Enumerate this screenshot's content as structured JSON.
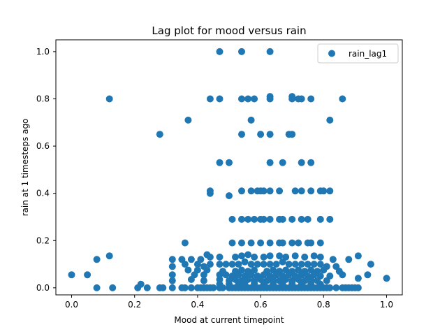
{
  "chart_data": {
    "type": "scatter",
    "title": "Lag plot for mood versus rain",
    "xlabel": "Mood at current timepoint",
    "ylabel": "rain at 1 timesteps ago",
    "xlim": [
      -0.05,
      1.05
    ],
    "ylim": [
      -0.03,
      1.05
    ],
    "xticks": [
      0.0,
      0.2,
      0.4,
      0.6,
      0.8,
      1.0
    ],
    "xtick_labels": [
      "0.0",
      "0.2",
      "0.4",
      "0.6",
      "0.8",
      "1.0"
    ],
    "yticks": [
      0.0,
      0.2,
      0.4,
      0.6,
      0.8,
      1.0
    ],
    "ytick_labels": [
      "0.0",
      "0.2",
      "0.4",
      "0.6",
      "0.8",
      "1.0"
    ],
    "grid": false,
    "legend": {
      "position": "top-right",
      "entries": [
        "rain_lag1"
      ]
    },
    "series": [
      {
        "name": "rain_lag1",
        "color": "#1f77b4",
        "points": [
          [
            0.47,
            1.0
          ],
          [
            0.54,
            1.0
          ],
          [
            0.63,
            1.0
          ],
          [
            0.12,
            0.8
          ],
          [
            0.44,
            0.8
          ],
          [
            0.47,
            0.8
          ],
          [
            0.54,
            0.8
          ],
          [
            0.56,
            0.8
          ],
          [
            0.58,
            0.8
          ],
          [
            0.63,
            0.81
          ],
          [
            0.63,
            0.8
          ],
          [
            0.7,
            0.81
          ],
          [
            0.7,
            0.8
          ],
          [
            0.72,
            0.8
          ],
          [
            0.73,
            0.8
          ],
          [
            0.76,
            0.8
          ],
          [
            0.86,
            0.8
          ],
          [
            0.37,
            0.71
          ],
          [
            0.57,
            0.71
          ],
          [
            0.82,
            0.71
          ],
          [
            0.28,
            0.65
          ],
          [
            0.54,
            0.65
          ],
          [
            0.6,
            0.65
          ],
          [
            0.63,
            0.65
          ],
          [
            0.69,
            0.65
          ],
          [
            0.7,
            0.65
          ],
          [
            0.47,
            0.53
          ],
          [
            0.5,
            0.53
          ],
          [
            0.63,
            0.53
          ],
          [
            0.67,
            0.53
          ],
          [
            0.73,
            0.53
          ],
          [
            0.76,
            0.53
          ],
          [
            0.44,
            0.41
          ],
          [
            0.44,
            0.4
          ],
          [
            0.5,
            0.39
          ],
          [
            0.54,
            0.41
          ],
          [
            0.57,
            0.41
          ],
          [
            0.59,
            0.41
          ],
          [
            0.6,
            0.41
          ],
          [
            0.61,
            0.41
          ],
          [
            0.63,
            0.41
          ],
          [
            0.66,
            0.41
          ],
          [
            0.71,
            0.41
          ],
          [
            0.73,
            0.41
          ],
          [
            0.76,
            0.41
          ],
          [
            0.79,
            0.41
          ],
          [
            0.8,
            0.41
          ],
          [
            0.82,
            0.41
          ],
          [
            0.51,
            0.29
          ],
          [
            0.54,
            0.29
          ],
          [
            0.56,
            0.29
          ],
          [
            0.58,
            0.29
          ],
          [
            0.6,
            0.29
          ],
          [
            0.61,
            0.29
          ],
          [
            0.63,
            0.29
          ],
          [
            0.66,
            0.29
          ],
          [
            0.67,
            0.29
          ],
          [
            0.7,
            0.29
          ],
          [
            0.73,
            0.29
          ],
          [
            0.75,
            0.29
          ],
          [
            0.79,
            0.29
          ],
          [
            0.82,
            0.29
          ],
          [
            0.36,
            0.19
          ],
          [
            0.51,
            0.19
          ],
          [
            0.54,
            0.19
          ],
          [
            0.57,
            0.19
          ],
          [
            0.6,
            0.19
          ],
          [
            0.63,
            0.19
          ],
          [
            0.66,
            0.19
          ],
          [
            0.67,
            0.19
          ],
          [
            0.7,
            0.19
          ],
          [
            0.72,
            0.19
          ],
          [
            0.75,
            0.19
          ],
          [
            0.76,
            0.19
          ],
          [
            0.79,
            0.19
          ],
          [
            0.08,
            0.12
          ],
          [
            0.12,
            0.135
          ],
          [
            0.32,
            0.12
          ],
          [
            0.35,
            0.12
          ],
          [
            0.38,
            0.12
          ],
          [
            0.41,
            0.12
          ],
          [
            0.43,
            0.14
          ],
          [
            0.44,
            0.13
          ],
          [
            0.47,
            0.13
          ],
          [
            0.52,
            0.13
          ],
          [
            0.54,
            0.135
          ],
          [
            0.56,
            0.14
          ],
          [
            0.58,
            0.13
          ],
          [
            0.61,
            0.13
          ],
          [
            0.63,
            0.135
          ],
          [
            0.66,
            0.135
          ],
          [
            0.68,
            0.13
          ],
          [
            0.71,
            0.135
          ],
          [
            0.74,
            0.13
          ],
          [
            0.77,
            0.135
          ],
          [
            0.79,
            0.13
          ],
          [
            0.83,
            0.12
          ],
          [
            0.88,
            0.12
          ],
          [
            0.91,
            0.135
          ],
          [
            0.32,
            0.09
          ],
          [
            0.36,
            0.1
          ],
          [
            0.4,
            0.1
          ],
          [
            0.42,
            0.09
          ],
          [
            0.44,
            0.1
          ],
          [
            0.47,
            0.1
          ],
          [
            0.49,
            0.1
          ],
          [
            0.51,
            0.1
          ],
          [
            0.53,
            0.1
          ],
          [
            0.55,
            0.11
          ],
          [
            0.57,
            0.1
          ],
          [
            0.59,
            0.1
          ],
          [
            0.61,
            0.1
          ],
          [
            0.63,
            0.1
          ],
          [
            0.65,
            0.1
          ],
          [
            0.67,
            0.11
          ],
          [
            0.69,
            0.1
          ],
          [
            0.71,
            0.1
          ],
          [
            0.73,
            0.1
          ],
          [
            0.75,
            0.1
          ],
          [
            0.77,
            0.1
          ],
          [
            0.79,
            0.1
          ],
          [
            0.81,
            0.09
          ],
          [
            0.84,
            0.09
          ],
          [
            0.95,
            0.1
          ],
          [
            0.37,
            0.075
          ],
          [
            0.4,
            0.075
          ],
          [
            0.43,
            0.075
          ],
          [
            0.48,
            0.07
          ],
          [
            0.52,
            0.07
          ],
          [
            0.54,
            0.075
          ],
          [
            0.56,
            0.07
          ],
          [
            0.58,
            0.075
          ],
          [
            0.62,
            0.07
          ],
          [
            0.64,
            0.075
          ],
          [
            0.66,
            0.07
          ],
          [
            0.68,
            0.075
          ],
          [
            0.7,
            0.07
          ],
          [
            0.72,
            0.075
          ],
          [
            0.74,
            0.07
          ],
          [
            0.76,
            0.075
          ],
          [
            0.78,
            0.07
          ],
          [
            0.8,
            0.075
          ],
          [
            0.85,
            0.07
          ],
          [
            0.0,
            0.055
          ],
          [
            0.05,
            0.055
          ],
          [
            0.32,
            0.055
          ],
          [
            0.39,
            0.055
          ],
          [
            0.42,
            0.055
          ],
          [
            0.47,
            0.055
          ],
          [
            0.49,
            0.055
          ],
          [
            0.51,
            0.05
          ],
          [
            0.53,
            0.055
          ],
          [
            0.55,
            0.05
          ],
          [
            0.57,
            0.055
          ],
          [
            0.59,
            0.05
          ],
          [
            0.61,
            0.055
          ],
          [
            0.63,
            0.05
          ],
          [
            0.65,
            0.055
          ],
          [
            0.67,
            0.05
          ],
          [
            0.69,
            0.055
          ],
          [
            0.71,
            0.05
          ],
          [
            0.73,
            0.055
          ],
          [
            0.75,
            0.05
          ],
          [
            0.77,
            0.055
          ],
          [
            0.79,
            0.05
          ],
          [
            0.82,
            0.05
          ],
          [
            0.86,
            0.055
          ],
          [
            0.94,
            0.055
          ],
          [
            0.32,
            0.03
          ],
          [
            0.38,
            0.035
          ],
          [
            0.42,
            0.03
          ],
          [
            0.47,
            0.035
          ],
          [
            0.5,
            0.03
          ],
          [
            0.52,
            0.035
          ],
          [
            0.54,
            0.03
          ],
          [
            0.56,
            0.035
          ],
          [
            0.58,
            0.03
          ],
          [
            0.6,
            0.035
          ],
          [
            0.62,
            0.03
          ],
          [
            0.64,
            0.035
          ],
          [
            0.66,
            0.03
          ],
          [
            0.68,
            0.035
          ],
          [
            0.7,
            0.03
          ],
          [
            0.72,
            0.035
          ],
          [
            0.74,
            0.03
          ],
          [
            0.76,
            0.035
          ],
          [
            0.78,
            0.03
          ],
          [
            0.81,
            0.03
          ],
          [
            0.91,
            0.04
          ],
          [
            1.0,
            0.04
          ],
          [
            0.22,
            0.015
          ],
          [
            0.47,
            0.015
          ],
          [
            0.5,
            0.015
          ],
          [
            0.53,
            0.02
          ],
          [
            0.55,
            0.015
          ],
          [
            0.58,
            0.02
          ],
          [
            0.61,
            0.015
          ],
          [
            0.64,
            0.02
          ],
          [
            0.67,
            0.015
          ],
          [
            0.7,
            0.02
          ],
          [
            0.73,
            0.015
          ],
          [
            0.76,
            0.02
          ],
          [
            0.79,
            0.015
          ],
          [
            0.08,
            0.0
          ],
          [
            0.13,
            0.0
          ],
          [
            0.21,
            0.0
          ],
          [
            0.24,
            0.0
          ],
          [
            0.28,
            0.0
          ],
          [
            0.29,
            0.0
          ],
          [
            0.32,
            0.0
          ],
          [
            0.35,
            0.0
          ],
          [
            0.36,
            0.0
          ],
          [
            0.38,
            0.0
          ],
          [
            0.4,
            0.0
          ],
          [
            0.41,
            0.0
          ],
          [
            0.42,
            0.0
          ],
          [
            0.43,
            0.0
          ],
          [
            0.44,
            0.0
          ],
          [
            0.45,
            0.0
          ],
          [
            0.47,
            0.0
          ],
          [
            0.48,
            0.0
          ],
          [
            0.5,
            0.0
          ],
          [
            0.51,
            0.0
          ],
          [
            0.52,
            0.0
          ],
          [
            0.53,
            0.0
          ],
          [
            0.54,
            0.0
          ],
          [
            0.55,
            0.0
          ],
          [
            0.56,
            0.0
          ],
          [
            0.57,
            0.0
          ],
          [
            0.58,
            0.0
          ],
          [
            0.59,
            0.0
          ],
          [
            0.6,
            0.0
          ],
          [
            0.61,
            0.0
          ],
          [
            0.62,
            0.0
          ],
          [
            0.63,
            0.0
          ],
          [
            0.64,
            0.0
          ],
          [
            0.65,
            0.0
          ],
          [
            0.66,
            0.0
          ],
          [
            0.67,
            0.0
          ],
          [
            0.68,
            0.0
          ],
          [
            0.69,
            0.0
          ],
          [
            0.7,
            0.0
          ],
          [
            0.71,
            0.0
          ],
          [
            0.72,
            0.0
          ],
          [
            0.73,
            0.0
          ],
          [
            0.74,
            0.0
          ],
          [
            0.75,
            0.0
          ],
          [
            0.76,
            0.0
          ],
          [
            0.77,
            0.0
          ],
          [
            0.78,
            0.0
          ],
          [
            0.79,
            0.0
          ],
          [
            0.8,
            0.0
          ],
          [
            0.81,
            0.0
          ],
          [
            0.82,
            0.0
          ],
          [
            0.84,
            0.0
          ],
          [
            0.86,
            0.0
          ],
          [
            0.87,
            0.0
          ],
          [
            0.88,
            0.0
          ],
          [
            0.89,
            0.0
          ],
          [
            0.9,
            0.0
          ],
          [
            0.91,
            0.0
          ]
        ]
      }
    ]
  }
}
